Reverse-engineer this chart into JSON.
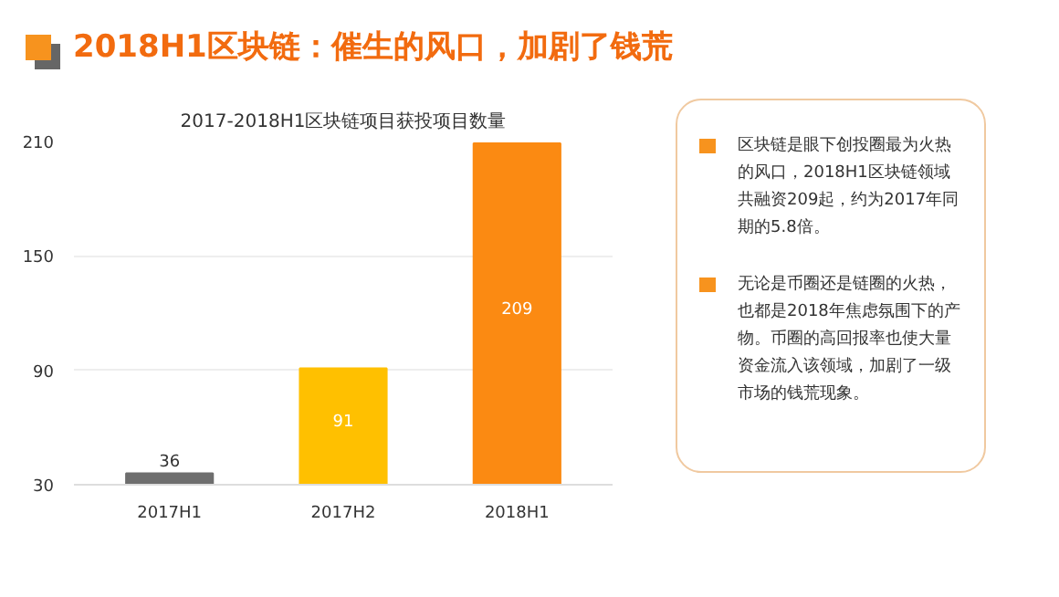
{
  "chart_data": {
    "type": "bar",
    "title": "2017-2018H1区块链项目获投项目数量",
    "subtitle": "2018H1区块链：催生的风口，加剧了钱荒",
    "categories": [
      "2017H1",
      "2017H2",
      "2018H1"
    ],
    "values": [
      36,
      91,
      209
    ],
    "colors": [
      "#6e6e6e",
      "#ffc000",
      "#fb8a12"
    ],
    "ylim": [
      30,
      210
    ],
    "yticks": [
      30,
      90,
      150,
      210
    ],
    "grid": "y",
    "data_labels": true,
    "annotations": [
      "区块链是眼下创投圈最为火热的风口，2018H1区块链领域共融资209起，约为2017年同期的5.8倍。",
      "无论是币圈还是链圈的火热，也都是2018年焦虑氛围下的产物。币圈的高回报率也使大量资金流入该领域，加剧了一级市场的钱荒现象。"
    ]
  }
}
